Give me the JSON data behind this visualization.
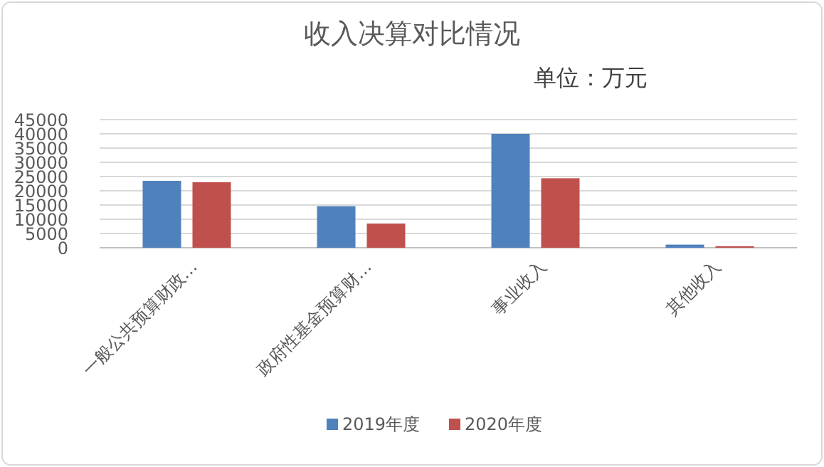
{
  "chart_data": {
    "type": "bar",
    "title": "收入决算对比情况",
    "subtitle": "单位：万元",
    "categories": [
      "一般公共预算财政…",
      "政府性基金预算财…",
      "事业收入",
      "其他收入"
    ],
    "series": [
      {
        "name": "2019年度",
        "color": "#4f81bd",
        "values": [
          23500,
          14600,
          40000,
          1100
        ]
      },
      {
        "name": "2020年度",
        "color": "#c0504d",
        "values": [
          23000,
          8500,
          24400,
          550
        ]
      }
    ],
    "ylim": [
      0,
      45000
    ],
    "yticks": [
      0,
      5000,
      10000,
      15000,
      20000,
      25000,
      30000,
      35000,
      40000,
      45000
    ],
    "grid": "y",
    "legend": "bottom"
  }
}
